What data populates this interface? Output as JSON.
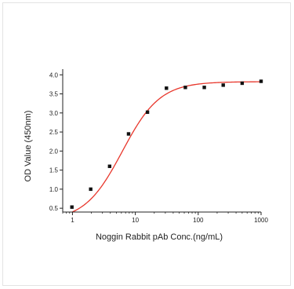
{
  "chart_data": {
    "type": "scatter",
    "xlabel": "Noggin Rabbit pAb Conc.(ng/mL)",
    "ylabel": "OD Value (450nm)",
    "x_scale": "log",
    "xlim": [
      0.7,
      1000
    ],
    "ylim": [
      0.4,
      4.15
    ],
    "x_ticks": [
      1,
      10,
      100,
      1000
    ],
    "x_tick_labels": [
      "1",
      "10",
      "100",
      "1000"
    ],
    "y_ticks": [
      0.5,
      1.0,
      1.5,
      2.0,
      2.5,
      3.0,
      3.5,
      4.0
    ],
    "y_tick_labels": [
      "0.5",
      "1.0",
      "1.5",
      "2.0",
      "2.5",
      "3.0",
      "3.5",
      "4.0"
    ],
    "grid": false,
    "legend": "none",
    "series": [
      {
        "points": [
          {
            "x": 0.98,
            "y": 0.53
          },
          {
            "x": 1.95,
            "y": 1.0
          },
          {
            "x": 3.9,
            "y": 1.6
          },
          {
            "x": 7.8,
            "y": 2.45
          },
          {
            "x": 15.6,
            "y": 3.02
          },
          {
            "x": 31.25,
            "y": 3.65
          },
          {
            "x": 62.5,
            "y": 3.67
          },
          {
            "x": 125,
            "y": 3.67
          },
          {
            "x": 250,
            "y": 3.73
          },
          {
            "x": 500,
            "y": 3.78
          },
          {
            "x": 1000,
            "y": 3.83
          }
        ],
        "marker_color": "#111111"
      }
    ],
    "fit_curve": {
      "model": "4PL",
      "bottom": 0.16,
      "top": 3.82,
      "ec50": 6.2,
      "hill": 1.45,
      "color": "#e8372c"
    }
  }
}
